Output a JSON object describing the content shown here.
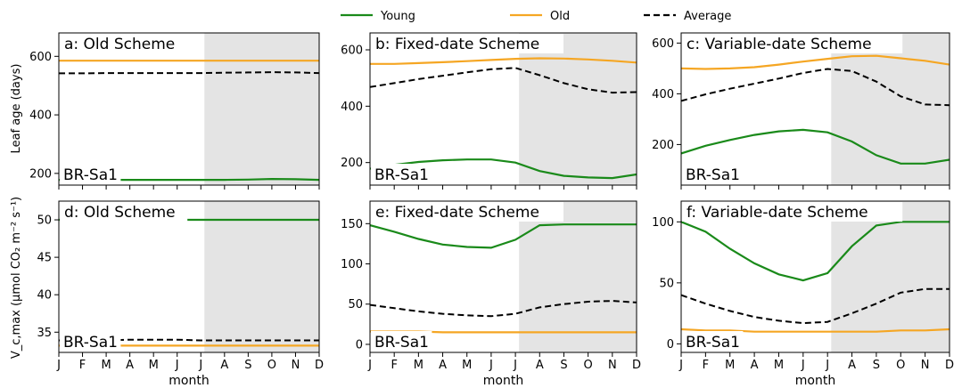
{
  "chart_data": {
    "type": "line",
    "legend": {
      "placement": "top-center",
      "entries": [
        {
          "label": "Young",
          "color": "#1a8a1a",
          "dash": "solid"
        },
        {
          "label": "Old",
          "color": "#f5a623",
          "dash": "solid"
        },
        {
          "label": "Average",
          "color": "#000000",
          "dash": "dashed"
        }
      ]
    },
    "months": [
      "J",
      "F",
      "M",
      "A",
      "M",
      "J",
      "J",
      "A",
      "S",
      "O",
      "N",
      "D"
    ],
    "xlabel": "month",
    "row_ylabels": [
      "Leaf age (days)",
      "V_c,max (µmol CO₂ m⁻² s⁻¹)"
    ],
    "shade_from_month_index": 6.15,
    "panels": [
      {
        "id": "a",
        "title": "a: Old Scheme",
        "site": "BR-Sa1",
        "ylim": [
          160,
          680
        ],
        "yticks": [
          200,
          400,
          600
        ],
        "series": [
          {
            "name": "Young",
            "values": [
              178,
              178,
              178,
              178,
              178,
              178,
              178,
              178,
              179,
              181,
              180,
              178
            ]
          },
          {
            "name": "Old",
            "values": [
              585,
              585,
              585,
              585,
              585,
              585,
              585,
              585,
              585,
              585,
              585,
              585
            ]
          },
          {
            "name": "Average",
            "values": [
              542,
              542,
              543,
              543,
              543,
              543,
              543,
              544,
              545,
              546,
              545,
              543
            ]
          }
        ]
      },
      {
        "id": "b",
        "title": "b: Fixed-date Scheme",
        "site": "BR-Sa1",
        "ylim": [
          120,
          660
        ],
        "yticks": [
          200,
          400,
          600
        ],
        "series": [
          {
            "name": "Young",
            "values": [
              178,
              192,
              202,
              208,
              211,
              211,
              200,
              170,
              153,
              147,
              145,
              158
            ]
          },
          {
            "name": "Old",
            "values": [
              550,
              550,
              553,
              556,
              560,
              564,
              568,
              570,
              569,
              566,
              561,
              555
            ]
          },
          {
            "name": "Average",
            "values": [
              468,
              482,
              496,
              508,
              520,
              531,
              536,
              510,
              482,
              460,
              448,
              450
            ]
          }
        ]
      },
      {
        "id": "c",
        "title": "c: Variable-date Scheme",
        "site": "BR-Sa1",
        "ylim": [
          40,
          640
        ],
        "yticks": [
          200,
          400,
          600
        ],
        "series": [
          {
            "name": "Young",
            "values": [
              165,
              195,
              218,
              238,
              252,
              258,
              248,
              212,
              158,
              125,
              125,
              140
            ]
          },
          {
            "name": "Old",
            "values": [
              500,
              498,
              500,
              505,
              515,
              527,
              538,
              548,
              550,
              540,
              530,
              515
            ]
          },
          {
            "name": "Average",
            "values": [
              372,
              398,
              420,
              440,
              460,
              482,
              498,
              490,
              448,
              390,
              358,
              355
            ]
          }
        ]
      },
      {
        "id": "d",
        "title": "d: Old Scheme",
        "site": "BR-Sa1",
        "ylim": [
          32.3,
          52.5
        ],
        "yticks": [
          35,
          40,
          45,
          50
        ],
        "series": [
          {
            "name": "Young",
            "values": [
              50,
              50,
              50,
              50,
              50,
              50,
              50,
              50,
              50,
              50,
              50,
              50
            ]
          },
          {
            "name": "Old",
            "values": [
              33.2,
              33.2,
              33.2,
              33.2,
              33.2,
              33.2,
              33.2,
              33.2,
              33.2,
              33.2,
              33.2,
              33.2
            ]
          },
          {
            "name": "Average",
            "values": [
              33.9,
              33.9,
              33.9,
              34.0,
              34.0,
              34.0,
              33.9,
              33.9,
              33.9,
              33.9,
              33.9,
              33.9
            ]
          }
        ]
      },
      {
        "id": "e",
        "title": "e: Fixed-date Scheme",
        "site": "BR-Sa1",
        "ylim": [
          -10,
          178
        ],
        "yticks": [
          0,
          50,
          100,
          150
        ],
        "series": [
          {
            "name": "Young",
            "values": [
              148,
              140,
              131,
              124,
              121,
              120,
              130,
              148,
              149,
              149,
              149,
              149
            ]
          },
          {
            "name": "Old",
            "values": [
              16,
              16,
              16,
              15,
              15,
              15,
              15,
              15,
              15,
              15,
              15,
              15
            ]
          },
          {
            "name": "Average",
            "values": [
              49,
              45,
              41,
              38,
              36,
              35,
              38,
              46,
              50,
              53,
              54,
              52
            ]
          }
        ]
      },
      {
        "id": "f",
        "title": "f: Variable-date Scheme",
        "site": "BR-Sa1",
        "ylim": [
          -7,
          117
        ],
        "yticks": [
          0,
          50,
          100
        ],
        "series": [
          {
            "name": "Young",
            "values": [
              100,
              92,
              78,
              66,
              57,
              52,
              58,
              80,
              97,
              100,
              100,
              100
            ]
          },
          {
            "name": "Old",
            "values": [
              12,
              11,
              11,
              10,
              10,
              10,
              10,
              10,
              10,
              11,
              11,
              12
            ]
          },
          {
            "name": "Average",
            "values": [
              40,
              33,
              27,
              22,
              19,
              17,
              18,
              25,
              33,
              42,
              45,
              45
            ]
          }
        ]
      }
    ]
  }
}
